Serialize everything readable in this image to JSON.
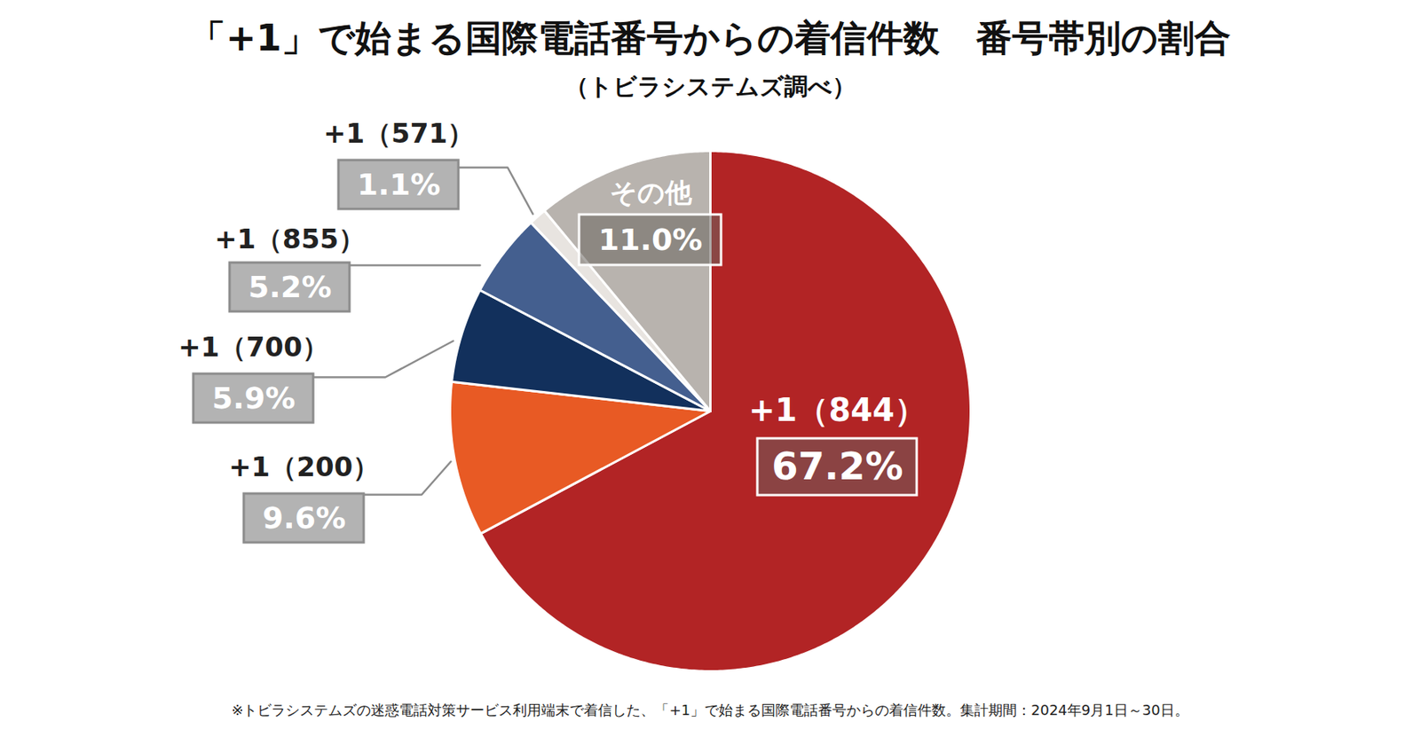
{
  "chart_data": {
    "type": "pie",
    "title": "「+1」で始まる国際電話番号からの着信件数　番号帯別の割合",
    "subtitle": "（トビラシステムズ調べ）",
    "caption": "※トビラシステムズの迷惑電話対策サービス利用端末で着信した、「+1」で始まる国際電話番号からの着信件数。集計期間：2024年9月1日～30日。",
    "categories": [
      "+1（844）",
      "+1（200）",
      "+1（700）",
      "+1（855）",
      "+1（571）",
      "その他"
    ],
    "values": [
      67.2,
      9.6,
      5.9,
      5.2,
      1.1,
      11.0
    ],
    "value_labels": [
      "67.2%",
      "9.6%",
      "5.9%",
      "5.2%",
      "1.1%",
      "11.0%"
    ],
    "colors": [
      "#b22425",
      "#e85a24",
      "#12305c",
      "#445f8f",
      "#e8e4e0",
      "#b8b3ae"
    ],
    "data_labels": true
  }
}
